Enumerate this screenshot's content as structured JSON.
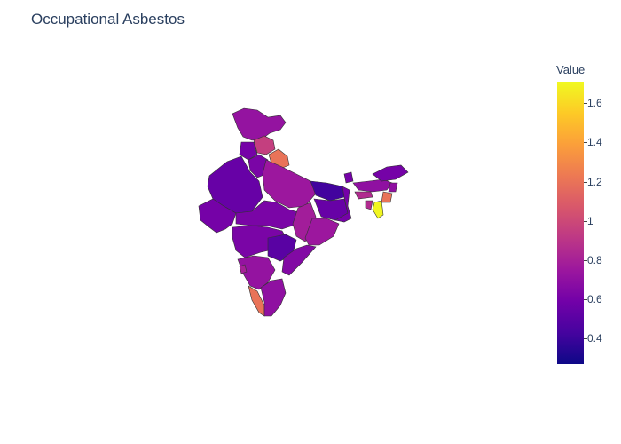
{
  "title": "Occupational Asbestos",
  "colorbar": {
    "title": "Value",
    "min": 0.27,
    "max": 1.71,
    "ticks": [
      "1.6",
      "1.4",
      "1.2",
      "1",
      "0.8",
      "0.6",
      "0.4"
    ],
    "tick_values": [
      1.6,
      1.4,
      1.2,
      1.0,
      0.8,
      0.6,
      0.4
    ],
    "colorscale": [
      "#0d0887",
      "#46039f",
      "#7201a8",
      "#9c179e",
      "#bd3786",
      "#d8576b",
      "#ed7953",
      "#fb9f3a",
      "#fdca26",
      "#f0f921"
    ]
  },
  "map_data": {
    "type": "choropleth",
    "regions": [
      {
        "name": "Jammu and Kashmir",
        "value": 0.72
      },
      {
        "name": "Himachal Pradesh",
        "value": 0.95
      },
      {
        "name": "Uttarakhand",
        "value": 1.2
      },
      {
        "name": "Punjab",
        "value": 0.6
      },
      {
        "name": "Haryana",
        "value": 0.62
      },
      {
        "name": "Rajasthan",
        "value": 0.55
      },
      {
        "name": "Uttar Pradesh",
        "value": 0.75
      },
      {
        "name": "Bihar",
        "value": 0.42
      },
      {
        "name": "Jharkhand",
        "value": 0.55
      },
      {
        "name": "West Bengal",
        "value": 0.6
      },
      {
        "name": "Gujarat",
        "value": 0.6
      },
      {
        "name": "Madhya Pradesh",
        "value": 0.62
      },
      {
        "name": "Chhattisgarh",
        "value": 0.78
      },
      {
        "name": "Odisha",
        "value": 0.75
      },
      {
        "name": "Maharashtra",
        "value": 0.62
      },
      {
        "name": "Telangana",
        "value": 0.5
      },
      {
        "name": "Andhra Pradesh",
        "value": 0.65
      },
      {
        "name": "Karnataka",
        "value": 0.72
      },
      {
        "name": "Goa",
        "value": 0.8
      },
      {
        "name": "Kerala",
        "value": 1.2
      },
      {
        "name": "Tamil Nadu",
        "value": 0.7
      },
      {
        "name": "Sikkim",
        "value": 0.6
      },
      {
        "name": "Assam",
        "value": 0.7
      },
      {
        "name": "Arunachal Pradesh",
        "value": 0.6
      },
      {
        "name": "Meghalaya",
        "value": 0.85
      },
      {
        "name": "Nagaland",
        "value": 0.7
      },
      {
        "name": "Manipur",
        "value": 1.2
      },
      {
        "name": "Mizoram",
        "value": 1.7
      },
      {
        "name": "Tripura",
        "value": 0.85
      }
    ]
  }
}
